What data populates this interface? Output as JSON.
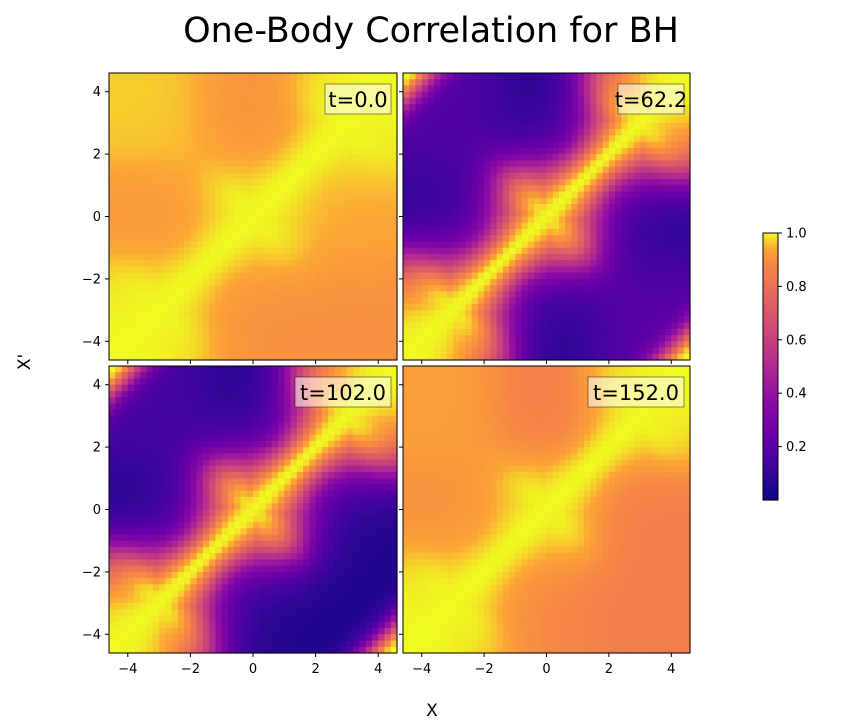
{
  "chart_data": {
    "type": "heatmap",
    "title": "One-Body Correlation for BH",
    "xlabel": "X",
    "ylabel": "X'",
    "colormap": "plasma",
    "xlim": [
      -4.6,
      4.6
    ],
    "ylim": [
      -4.6,
      4.6
    ],
    "xticks": [
      -4,
      -2,
      0,
      2,
      4
    ],
    "yticks": [
      -4,
      -2,
      0,
      2,
      4
    ],
    "xtick_labels": [
      "−4",
      "−2",
      "0",
      "2",
      "4"
    ],
    "ytick_labels": [
      "−4",
      "−2",
      "0",
      "2",
      "4"
    ],
    "lattice_sites": [
      -3,
      0,
      3
    ],
    "colorbar": {
      "range": [
        0.0,
        1.0
      ],
      "ticks": [
        0.2,
        0.4,
        0.6,
        0.8,
        1.0
      ],
      "tick_labels": [
        "0.2",
        "0.4",
        "0.6",
        "0.8",
        "1.0"
      ]
    },
    "panels": [
      {
        "label": "t=0.0",
        "diagonal": 1.0,
        "off_diagonal_mean": 0.91,
        "off_diagonal_variation": 0.02,
        "boundary": "open",
        "site_values": [
          [
            1.0,
            0.9,
            0.9
          ],
          [
            0.91,
            1.0,
            0.94
          ],
          [
            0.97,
            0.9,
            1.0
          ]
        ]
      },
      {
        "label": "t=62.2",
        "diagonal": 1.0,
        "off_diagonal_mean": 0.12,
        "off_diagonal_variation": 0.06,
        "boundary": "periodic",
        "site_values": [
          [
            1.0,
            0.05,
            0.2
          ],
          [
            0.08,
            1.0,
            0.06
          ],
          [
            0.18,
            0.05,
            1.0
          ]
        ]
      },
      {
        "label": "t=102.0",
        "diagonal": 1.0,
        "off_diagonal_mean": 0.12,
        "off_diagonal_variation": 0.06,
        "boundary": "periodic",
        "site_values": [
          [
            1.0,
            0.05,
            0.05
          ],
          [
            0.05,
            1.0,
            0.05
          ],
          [
            0.15,
            0.05,
            1.0
          ]
        ]
      },
      {
        "label": "t=152.0",
        "diagonal": 1.0,
        "off_diagonal_mean": 0.85,
        "off_diagonal_variation": 0.05,
        "boundary": "open",
        "site_values": [
          [
            1.0,
            0.88,
            0.85
          ],
          [
            0.9,
            1.0,
            0.85
          ],
          [
            0.93,
            0.85,
            1.0
          ]
        ]
      }
    ]
  }
}
